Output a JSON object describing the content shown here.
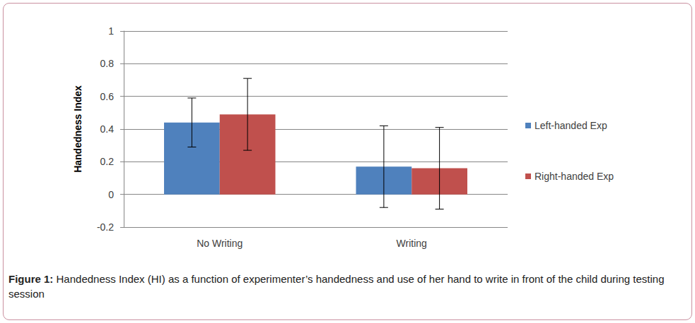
{
  "chart_data": {
    "type": "bar",
    "caption_label": "Figure 1:",
    "caption": "Handedness Index (HI) as a function of experimenter’s handedness and use of her hand to write in front of the child during testing session",
    "y_label": "Handedness Index",
    "categories": [
      "No Writing",
      "Writing"
    ],
    "series": [
      {
        "name": "Left-handed Exp",
        "color": "#4f81bd",
        "values": [
          0.44,
          0.17
        ],
        "errors": [
          0.15,
          0.25
        ]
      },
      {
        "name": "Right-handed Exp",
        "color": "#c0504d",
        "values": [
          0.49,
          0.16
        ],
        "errors": [
          0.22,
          0.25
        ]
      }
    ],
    "ylim": [
      -0.2,
      1
    ],
    "yticks": [
      -0.2,
      0,
      0.2,
      0.4,
      0.6,
      0.8,
      1
    ],
    "grid": true,
    "legend": "right"
  }
}
